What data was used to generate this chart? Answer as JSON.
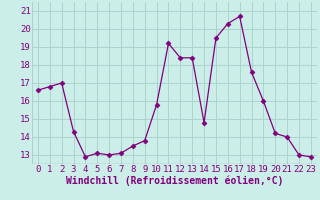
{
  "x": [
    0,
    1,
    2,
    3,
    4,
    5,
    6,
    7,
    8,
    9,
    10,
    11,
    12,
    13,
    14,
    15,
    16,
    17,
    18,
    19,
    20,
    21,
    22,
    23
  ],
  "y": [
    16.6,
    16.8,
    17.0,
    14.3,
    12.9,
    13.1,
    13.0,
    13.1,
    13.5,
    13.8,
    15.8,
    19.2,
    18.4,
    18.4,
    14.8,
    19.5,
    20.3,
    20.7,
    17.6,
    16.0,
    14.2,
    14.0,
    13.0,
    12.9
  ],
  "line_color": "#800080",
  "marker": "D",
  "marker_size": 2.5,
  "bg_color": "#cceee8",
  "grid_color": "#aad4ce",
  "xlabel": "Windchill (Refroidissement éolien,°C)",
  "xlabel_fontsize": 7,
  "tick_fontsize": 6.5,
  "ylim": [
    12.5,
    21.5
  ],
  "xlim": [
    -0.5,
    23.5
  ],
  "yticks": [
    13,
    14,
    15,
    16,
    17,
    18,
    19,
    20,
    21
  ],
  "xticks": [
    0,
    1,
    2,
    3,
    4,
    5,
    6,
    7,
    8,
    9,
    10,
    11,
    12,
    13,
    14,
    15,
    16,
    17,
    18,
    19,
    20,
    21,
    22,
    23
  ]
}
